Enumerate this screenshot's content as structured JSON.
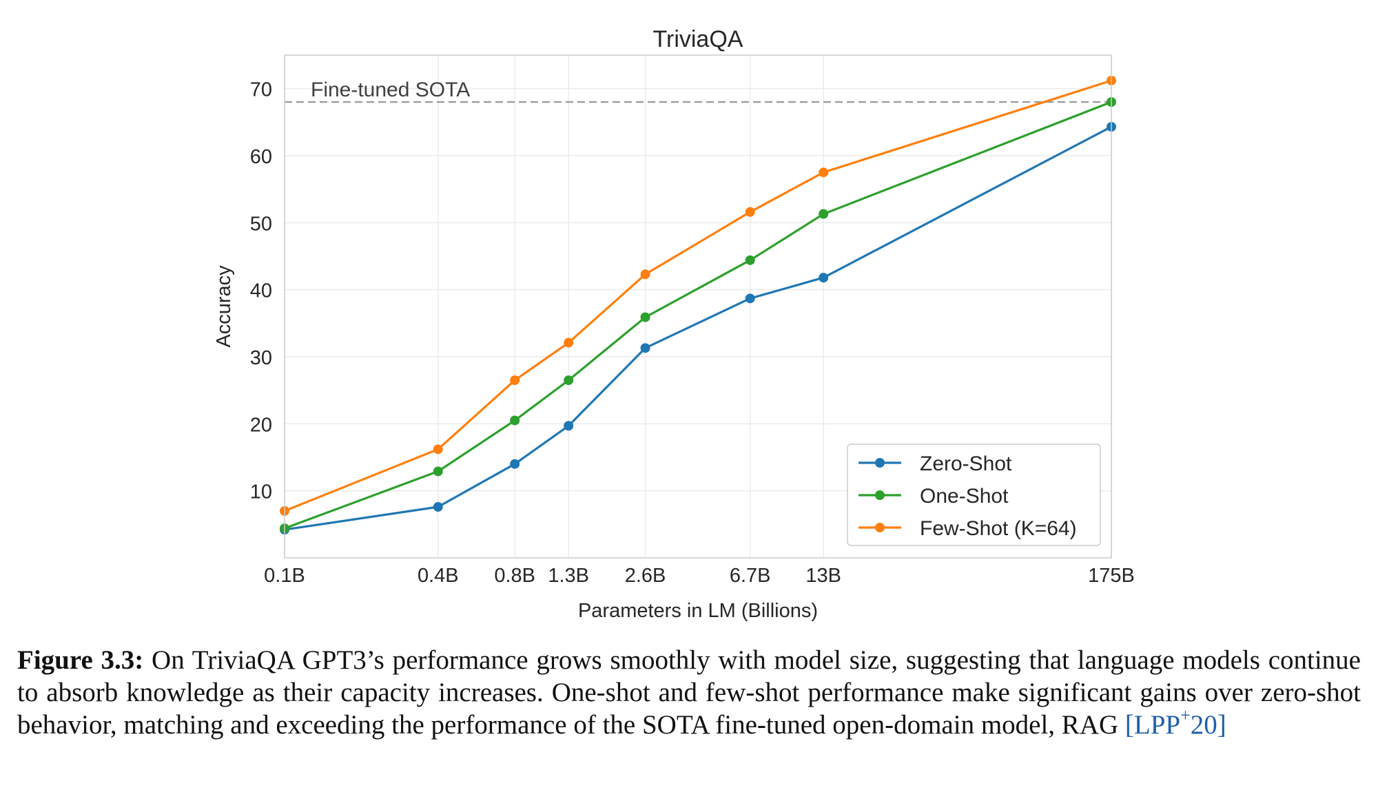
{
  "chart_data": {
    "type": "line",
    "title": "TriviaQA",
    "xlabel": "Parameters in LM (Billions)",
    "ylabel": "Accuracy",
    "x_scale": "log",
    "categories": [
      "0.1B",
      "0.4B",
      "0.8B",
      "1.3B",
      "2.6B",
      "6.7B",
      "13B",
      "175B"
    ],
    "x": [
      0.1,
      0.4,
      0.8,
      1.3,
      2.6,
      6.7,
      13,
      175
    ],
    "ylim": [
      0,
      75
    ],
    "yticks": [
      10,
      20,
      30,
      40,
      50,
      60,
      70
    ],
    "grid": true,
    "legend_position": "lower-right",
    "series": [
      {
        "name": "Zero-Shot",
        "color": "#1f77b4",
        "values": [
          4.2,
          7.6,
          14.0,
          19.7,
          31.3,
          38.7,
          41.8,
          64.3
        ]
      },
      {
        "name": "One-Shot",
        "color": "#2ca02c",
        "values": [
          4.4,
          12.9,
          20.5,
          26.5,
          35.9,
          44.4,
          51.3,
          68.0
        ]
      },
      {
        "name": "Few-Shot (K=64)",
        "color": "#ff7f0e",
        "values": [
          7.0,
          16.2,
          26.5,
          32.1,
          42.3,
          51.6,
          57.5,
          71.2
        ]
      }
    ],
    "reference_line": {
      "label": "Fine-tuned SOTA",
      "value": 68.0,
      "color": "#999999"
    }
  },
  "caption": {
    "label": "Figure 3.3:",
    "text": " On TriviaQA GPT3’s performance grows smoothly with model size, suggesting that language models continue to absorb knowledge as their capacity increases. One-shot and few-shot performance make significant gains over zero-shot behavior, matching and exceeding the performance of the SOTA fine-tuned open-domain model, RAG ",
    "cite_open": "[",
    "cite_main": "LPP",
    "cite_sup": "+",
    "cite_year": "20",
    "cite_close": "]"
  }
}
